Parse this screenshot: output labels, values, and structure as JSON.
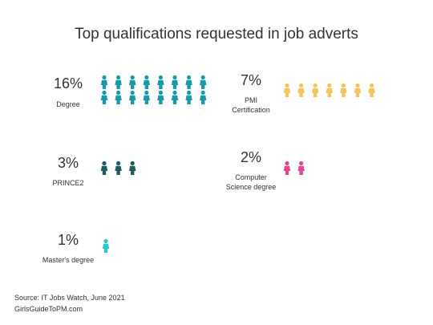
{
  "chart_data": {
    "type": "pictogram",
    "title": "Top qualifications requested in job adverts",
    "categories": [
      "Degree",
      "PMI Certification",
      "PRINCE2",
      "Computer Science degree",
      "Master's degree"
    ],
    "values": [
      16,
      7,
      3,
      2,
      1
    ],
    "value_labels": [
      "16%",
      "7%",
      "3%",
      "2%",
      "1%"
    ],
    "colors": [
      "#1a9aa8",
      "#f2c462",
      "#1f5b63",
      "#e0488f",
      "#2ec4d0"
    ],
    "source": "Source: IT Jobs Watch, June 2021",
    "credit": "GirlsGuideToPM.com"
  }
}
